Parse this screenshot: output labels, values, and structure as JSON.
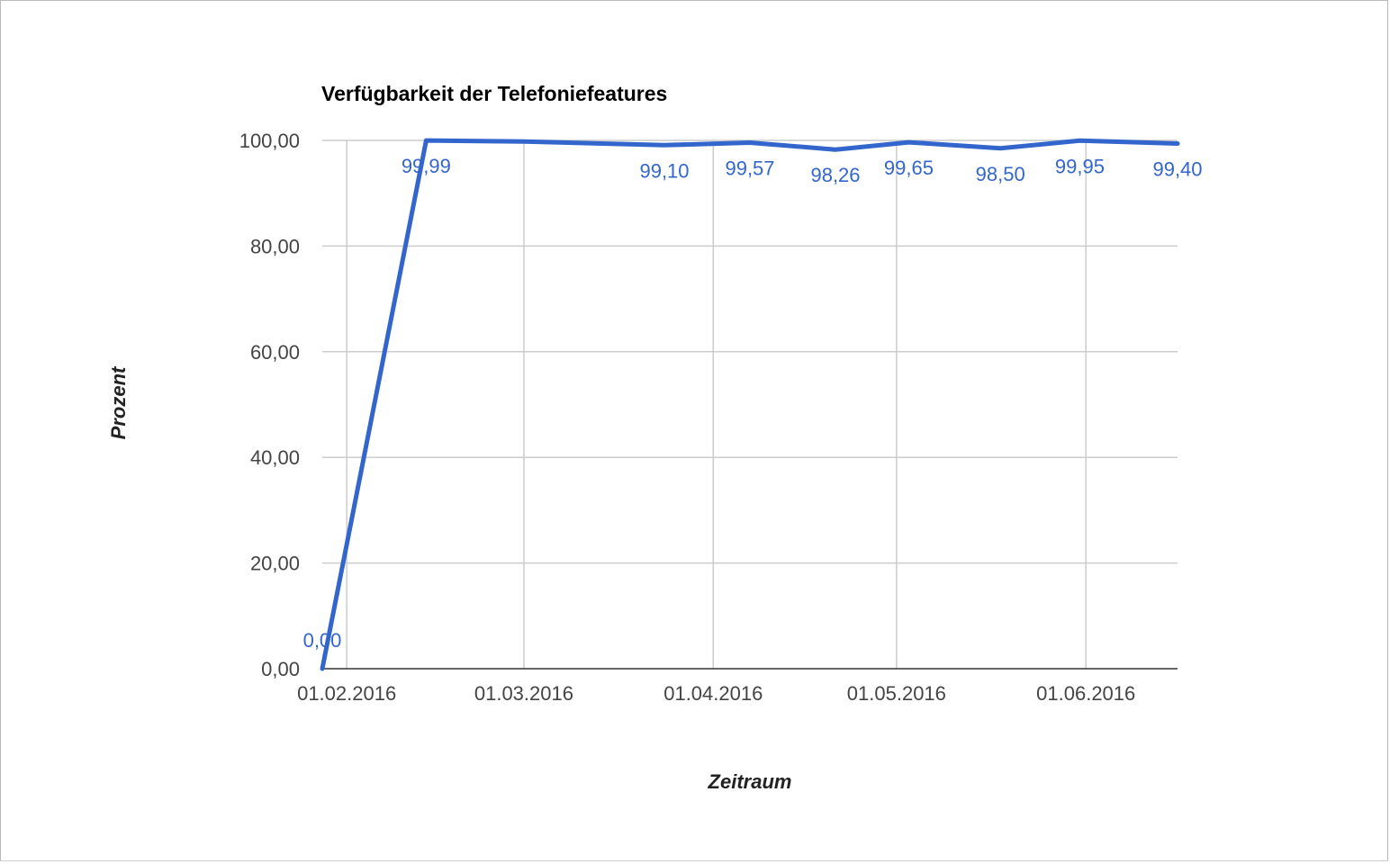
{
  "chart_data": {
    "type": "line",
    "title": "Verfügbarkeit der Telefoniefeatures",
    "xlabel": "Zeitraum",
    "ylabel": "Prozent",
    "ylim": [
      0,
      100
    ],
    "xlim": [
      "2016-01-28",
      "2016-06-16"
    ],
    "grid": true,
    "legend": "none",
    "y_ticks": [
      "0,00",
      "20,00",
      "40,00",
      "60,00",
      "80,00",
      "100,00"
    ],
    "x_ticks": [
      {
        "date": "2016-02-01",
        "label": "01.02.2016"
      },
      {
        "date": "2016-03-01",
        "label": "01.03.2016"
      },
      {
        "date": "2016-04-01",
        "label": "01.04.2016"
      },
      {
        "date": "2016-05-01",
        "label": "01.05.2016"
      },
      {
        "date": "2016-06-01",
        "label": "01.06.2016"
      }
    ],
    "colors": {
      "series": "#3366cc",
      "grid": "#cccccc",
      "baseline": "#333333"
    },
    "series": [
      {
        "points": [
          {
            "x": "2016-01-28",
            "y": 0.0,
            "label": "0,00"
          },
          {
            "x": "2016-02-14",
            "y": 99.99,
            "label": "99,99"
          },
          {
            "x": "2016-03-01",
            "y": 99.8
          },
          {
            "x": "2016-03-24",
            "y": 99.1,
            "label": "99,10"
          },
          {
            "x": "2016-04-07",
            "y": 99.57,
            "label": "99,57"
          },
          {
            "x": "2016-04-21",
            "y": 98.26,
            "label": "98,26"
          },
          {
            "x": "2016-05-03",
            "y": 99.65,
            "label": "99,65"
          },
          {
            "x": "2016-05-18",
            "y": 98.5,
            "label": "98,50"
          },
          {
            "x": "2016-05-31",
            "y": 99.95,
            "label": "99,95"
          },
          {
            "x": "2016-06-16",
            "y": 99.4,
            "label": "99,40"
          }
        ]
      }
    ]
  }
}
